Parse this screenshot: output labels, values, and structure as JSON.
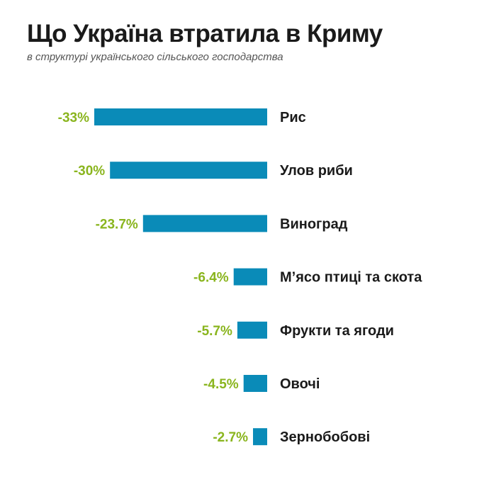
{
  "header": {
    "title": "Що Україна втратила в Криму",
    "subtitle": "в структурі українського сільського господарства"
  },
  "colors": {
    "bar": "#0a8bb8",
    "value_label": "#8ab51e",
    "category_label": "#1a1a1a"
  },
  "chart_data": {
    "type": "bar",
    "orientation": "horizontal",
    "title": "Що Україна втратила в Криму",
    "subtitle": "в структурі українського сільського господарства",
    "categories": [
      "Рис",
      "Улов риби",
      "Виноград",
      "М’ясо птиці та скота",
      "Фрукти та ягоди",
      "Овочі",
      "Зернобобові"
    ],
    "values": [
      -33,
      -30,
      -23.7,
      -6.4,
      -5.7,
      -4.5,
      -2.7
    ],
    "value_labels": [
      "-33%",
      "-30%",
      "-23.7%",
      "-6.4%",
      "-5.7%",
      "-4.5%",
      "-2.7%"
    ],
    "xlabel": "",
    "ylabel": "",
    "xlim": [
      -33,
      0
    ],
    "grid": false,
    "legend": "none"
  }
}
